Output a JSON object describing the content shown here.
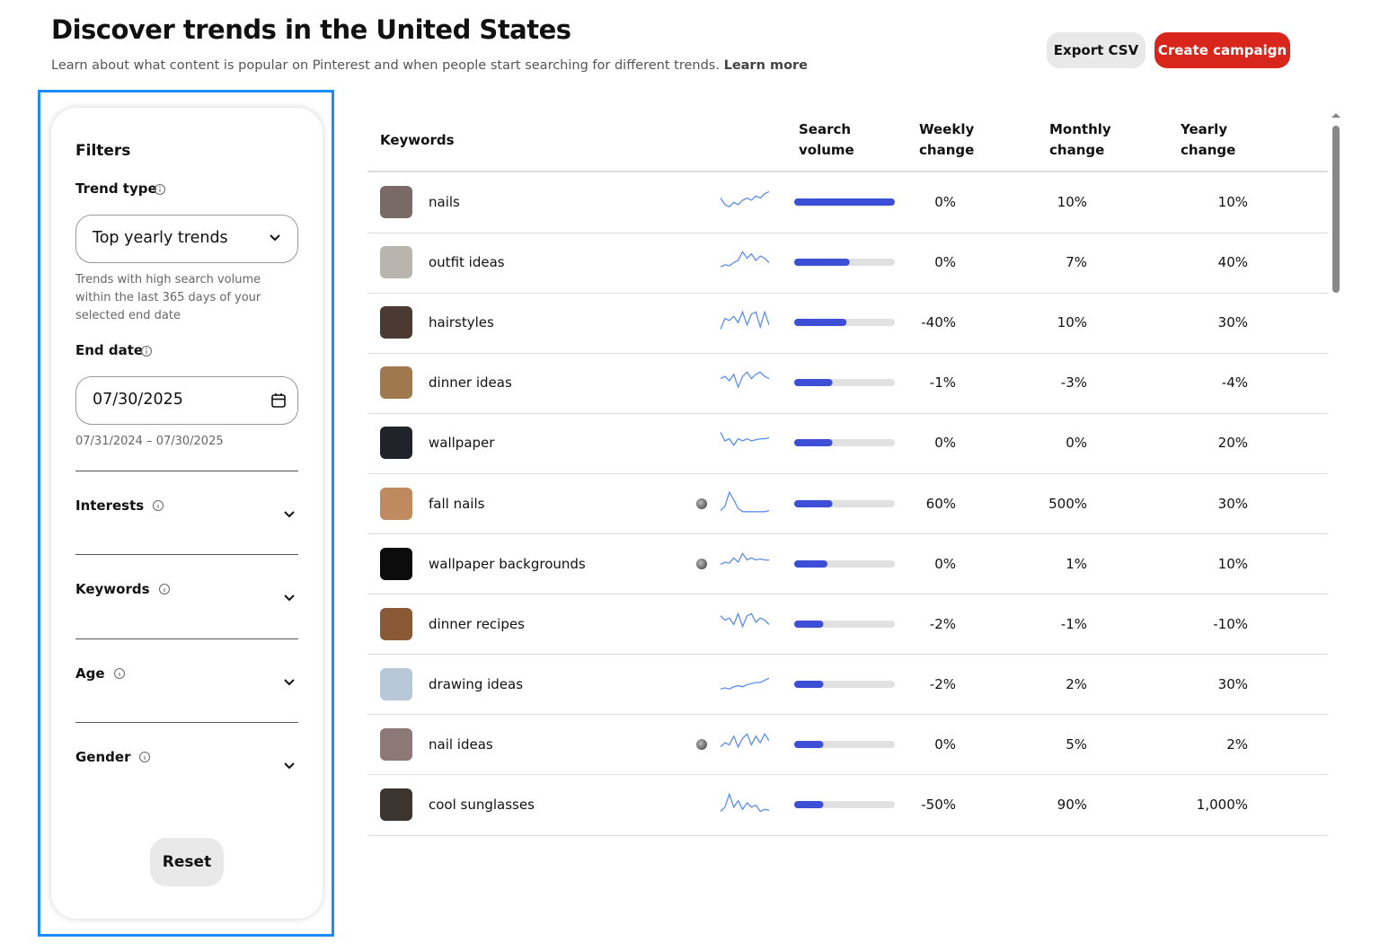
{
  "header": {
    "title": "Discover trends in the United States",
    "subtitle": "Learn about what content is popular on Pinterest and when people start searching for different trends.",
    "learn_more": "Learn more"
  },
  "buttons": {
    "export": "Export CSV",
    "create": "Create campaign"
  },
  "filters": {
    "title": "Filters",
    "trend_type": {
      "label": "Trend type",
      "value": "Top yearly trends",
      "help": "Trends with high search volume within the last 365 days of your selected end date"
    },
    "end_date": {
      "label": "End date",
      "value": "07/30/2025",
      "range": "07/31/2024 – 07/30/2025"
    },
    "sections": [
      "Interests",
      "Keywords",
      "Age",
      "Gender"
    ],
    "reset": "Reset"
  },
  "table": {
    "columns": [
      "Keywords",
      "Search volume",
      "Weekly change",
      "Monthly change",
      "Yearly change"
    ],
    "rows": [
      {
        "keyword": "nails",
        "thumb": "#7a6a66",
        "badge": false,
        "trend": [
          0.6,
          0.3,
          0.2,
          0.4,
          0.3,
          0.5,
          0.6,
          0.5,
          0.7,
          0.6,
          0.8,
          0.9
        ],
        "volume": 1.0,
        "weekly": "0%",
        "monthly": "10%",
        "yearly": "10%"
      },
      {
        "keyword": "outfit ideas",
        "thumb": "#b9b4ae",
        "badge": false,
        "trend": [
          0.2,
          0.3,
          0.25,
          0.4,
          0.5,
          0.9,
          0.6,
          0.8,
          0.5,
          0.7,
          0.6,
          0.4
        ],
        "volume": 0.55,
        "weekly": "0%",
        "monthly": "7%",
        "yearly": "40%"
      },
      {
        "keyword": "hairstyles",
        "thumb": "#4a3a32",
        "badge": false,
        "trend": [
          0.1,
          0.6,
          0.5,
          0.7,
          0.4,
          0.9,
          0.3,
          0.8,
          0.9,
          0.2,
          0.9,
          0.3
        ],
        "volume": 0.52,
        "weekly": "-40%",
        "monthly": "10%",
        "yearly": "30%"
      },
      {
        "keyword": "dinner ideas",
        "thumb": "#a07850",
        "badge": false,
        "trend": [
          0.6,
          0.7,
          0.5,
          0.8,
          0.2,
          0.7,
          0.9,
          0.6,
          0.8,
          0.9,
          0.7,
          0.6
        ],
        "volume": 0.38,
        "weekly": "-1%",
        "monthly": "-3%",
        "yearly": "-4%"
      },
      {
        "keyword": "wallpaper",
        "thumb": "#20232a",
        "badge": false,
        "trend": [
          0.9,
          0.5,
          0.6,
          0.3,
          0.6,
          0.5,
          0.6,
          0.5,
          0.55,
          0.6,
          0.6,
          0.65
        ],
        "volume": 0.38,
        "weekly": "0%",
        "monthly": "0%",
        "yearly": "20%"
      },
      {
        "keyword": "fall nails",
        "thumb": "#c08a60",
        "badge": true,
        "trend": [
          0.1,
          0.3,
          0.95,
          0.6,
          0.2,
          0.05,
          0.05,
          0.05,
          0.05,
          0.05,
          0.05,
          0.1
        ],
        "volume": 0.38,
        "weekly": "60%",
        "monthly": "500%",
        "yearly": "30%"
      },
      {
        "keyword": "wallpaper backgrounds",
        "thumb": "#0c0c0c",
        "badge": true,
        "trend": [
          0.4,
          0.5,
          0.45,
          0.7,
          0.5,
          0.9,
          0.6,
          0.7,
          0.6,
          0.65,
          0.6,
          0.6
        ],
        "volume": 0.33,
        "weekly": "0%",
        "monthly": "1%",
        "yearly": "10%"
      },
      {
        "keyword": "dinner recipes",
        "thumb": "#8a5a36",
        "badge": false,
        "trend": [
          0.8,
          0.6,
          0.7,
          0.4,
          0.9,
          0.3,
          0.8,
          0.9,
          0.5,
          0.7,
          0.6,
          0.4
        ],
        "volume": 0.29,
        "weekly": "-2%",
        "monthly": "-1%",
        "yearly": "-10%"
      },
      {
        "keyword": "drawing ideas",
        "thumb": "#b8c8d8",
        "badge": false,
        "trend": [
          0.2,
          0.25,
          0.2,
          0.3,
          0.35,
          0.3,
          0.4,
          0.45,
          0.5,
          0.5,
          0.6,
          0.7
        ],
        "volume": 0.29,
        "weekly": "-2%",
        "monthly": "2%",
        "yearly": "30%"
      },
      {
        "keyword": "nail ideas",
        "thumb": "#8c7874",
        "badge": true,
        "trend": [
          0.3,
          0.5,
          0.4,
          0.8,
          0.3,
          0.7,
          0.9,
          0.4,
          0.8,
          0.5,
          0.9,
          0.6
        ],
        "volume": 0.29,
        "weekly": "0%",
        "monthly": "5%",
        "yearly": "2%"
      },
      {
        "keyword": "cool sunglasses",
        "thumb": "#3c342e",
        "badge": false,
        "trend": [
          0.1,
          0.3,
          0.9,
          0.3,
          0.6,
          0.2,
          0.5,
          0.3,
          0.4,
          0.1,
          0.2,
          0.15
        ],
        "volume": 0.29,
        "weekly": "-50%",
        "monthly": "90%",
        "yearly": "1,000%"
      }
    ]
  }
}
